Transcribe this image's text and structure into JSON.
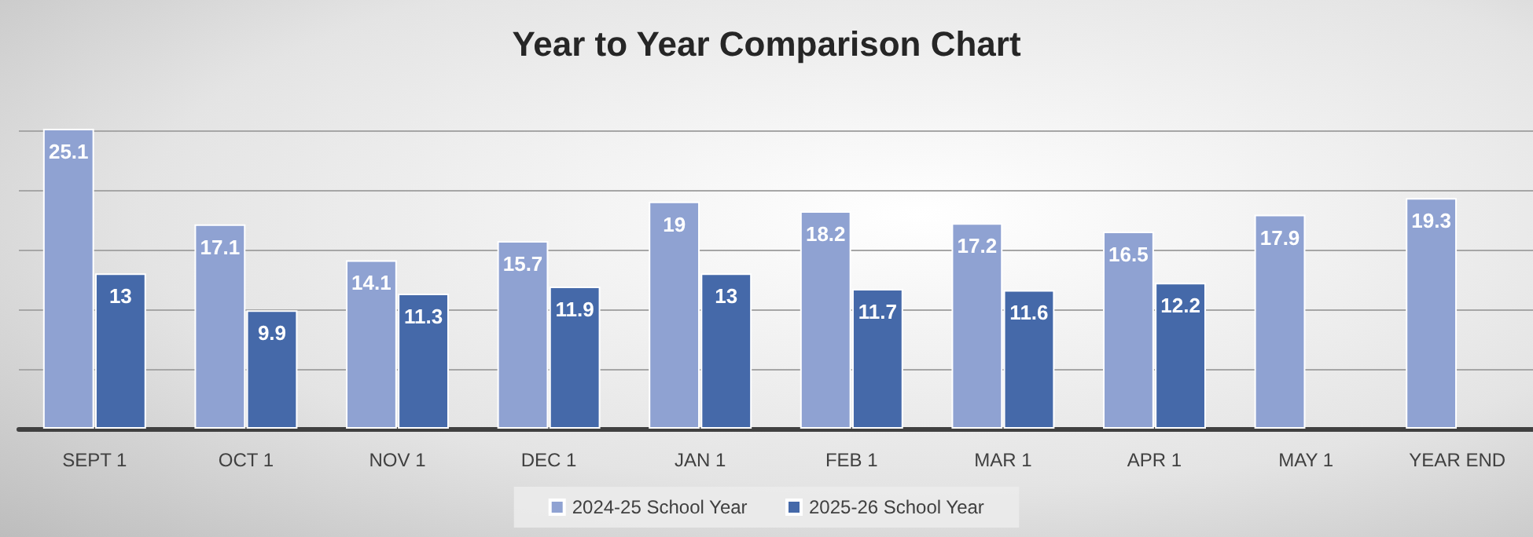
{
  "chart_data": {
    "type": "bar",
    "title": "Year to Year Comparison Chart",
    "categories": [
      "SEPT 1",
      "OCT 1",
      "NOV 1",
      "DEC 1",
      "JAN 1",
      "FEB 1",
      "MAR 1",
      "APR 1",
      "MAY 1",
      "YEAR END"
    ],
    "series": [
      {
        "name": "2024-25 School Year",
        "color": "#8fa2d2",
        "values": [
          25.1,
          17.1,
          14.1,
          15.7,
          19,
          18.2,
          17.2,
          16.5,
          17.9,
          19.3
        ]
      },
      {
        "name": "2025-26 School Year",
        "color": "#4569a9",
        "values": [
          13,
          9.9,
          11.3,
          11.9,
          13,
          11.7,
          11.6,
          12.2,
          null,
          null
        ]
      }
    ],
    "yticks": [
      {
        "value": 0,
        "label": null
      },
      {
        "value": 5,
        "label": null
      },
      {
        "value": 10,
        "label": null
      },
      {
        "value": 15,
        "label": null
      },
      {
        "value": 20,
        "label": null
      },
      {
        "value": 25,
        "label": null
      }
    ],
    "grid": "y",
    "legend": "bottom",
    "data_labels": true,
    "tick_labels": "x"
  }
}
